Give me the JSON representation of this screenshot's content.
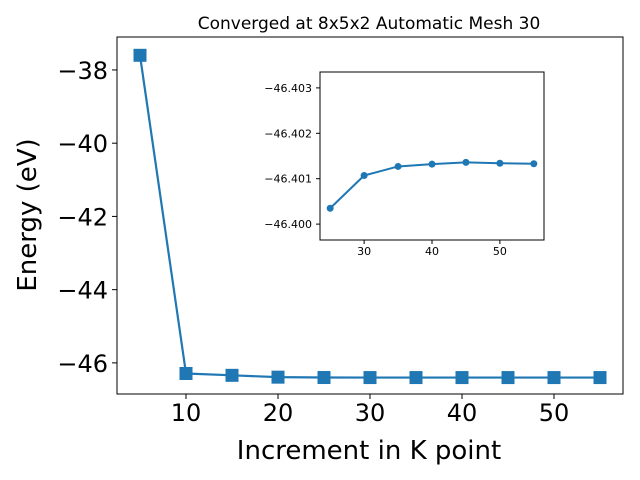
{
  "chart_data": [
    {
      "type": "line",
      "title": "Converged at 8x5x2 Automatic Mesh 30",
      "xlabel": "Increment in K point",
      "ylabel": "Energy (eV)",
      "x": [
        5,
        10,
        15,
        20,
        25,
        30,
        35,
        40,
        45,
        50,
        55
      ],
      "series": [
        {
          "values": [
            -37.6,
            -46.29,
            -46.34,
            -46.39,
            -46.4,
            -46.401,
            -46.4012,
            -46.4013,
            -46.4014,
            -46.4013,
            -46.4013
          ]
        }
      ],
      "xlim": [
        2.5,
        57.5
      ],
      "ylim": [
        -46.85,
        -37.1
      ],
      "xticks": [
        10,
        20,
        30,
        40,
        50
      ],
      "yticks": [
        -38,
        -40,
        -42,
        -44,
        -46
      ],
      "xtick_labels": [
        "10",
        "20",
        "30",
        "40",
        "50"
      ],
      "ytick_labels": [
        "−38",
        "−40",
        "−42",
        "−44",
        "−46"
      ],
      "marker": "square",
      "color": "#1f77b4",
      "grid": false
    },
    {
      "type": "line",
      "title": "",
      "x": [
        25,
        30,
        35,
        40,
        45,
        50,
        55
      ],
      "series": [
        {
          "values": [
            -46.40035,
            -46.40107,
            -46.40127,
            -46.40132,
            -46.40136,
            -46.40134,
            -46.40133
          ]
        }
      ],
      "xlim": [
        23.5,
        56.5
      ],
      "ylim": [
        -46.39965,
        -46.40335
      ],
      "xticks": [
        30,
        40,
        50
      ],
      "yticks": [
        -46.403,
        -46.402,
        -46.401,
        -46.4
      ],
      "xtick_labels": [
        "30",
        "40",
        "50"
      ],
      "ytick_labels": [
        "−46.403",
        "−46.402",
        "−46.401",
        "−46.400"
      ],
      "marker": "circle",
      "color": "#1f77b4",
      "grid": false,
      "inset": true
    }
  ]
}
